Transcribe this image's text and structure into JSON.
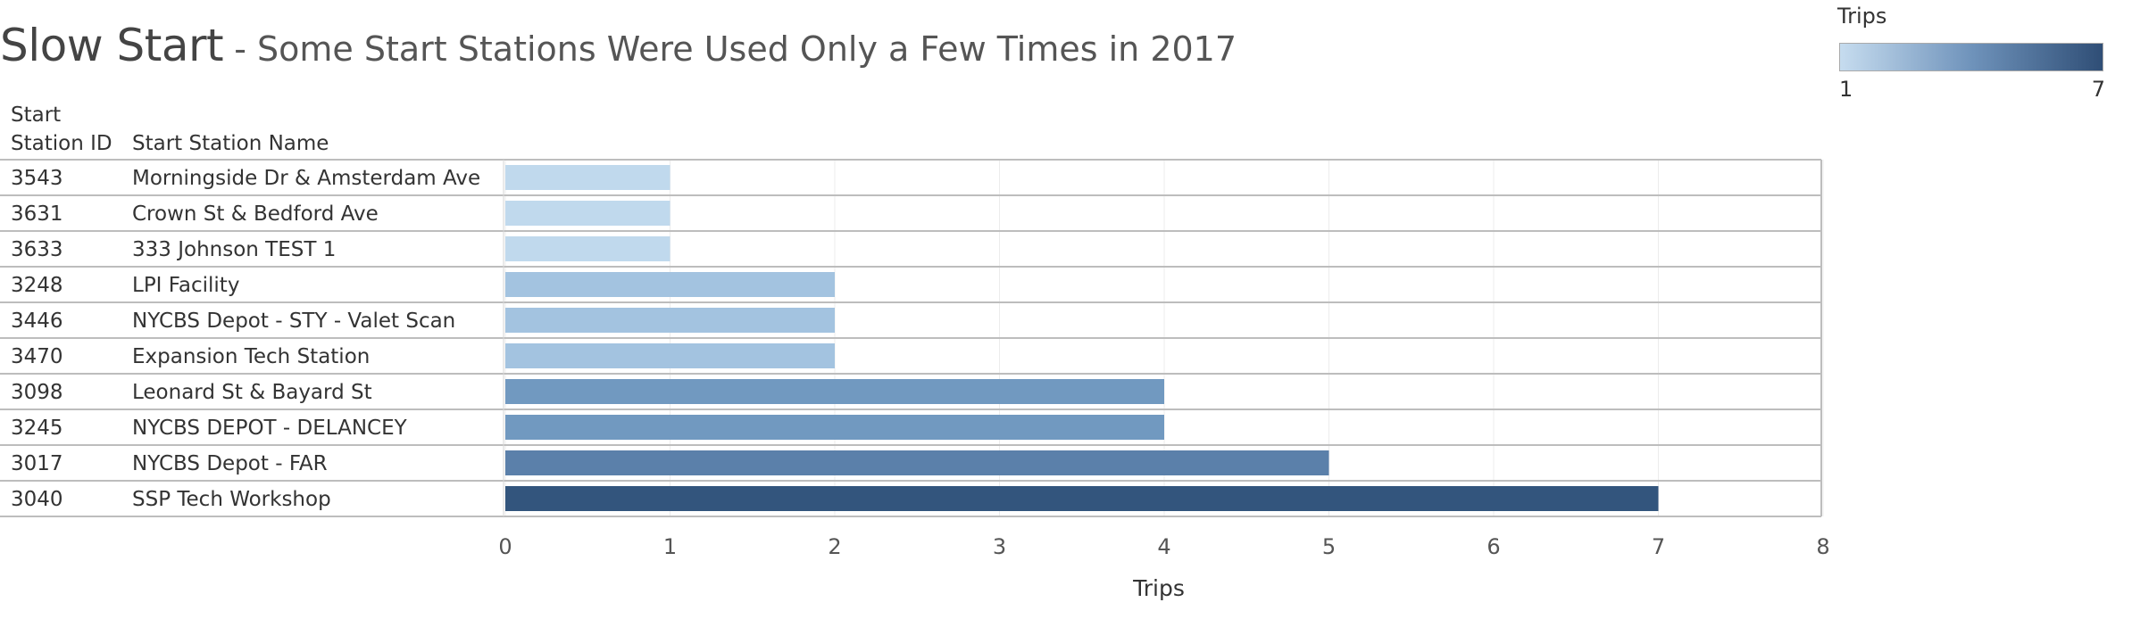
{
  "title": {
    "main": "Slow Start",
    "separator": " - ",
    "subtitle": "Some Start Stations Were Used Only a Few Times in 2017"
  },
  "legend": {
    "title": "Trips",
    "min_label": "1",
    "max_label": "7",
    "color_low": "#c6dcef",
    "color_high": "#2f4e76"
  },
  "chart_data": {
    "type": "bar",
    "orientation": "horizontal",
    "row_headers": [
      "Start Station ID",
      "Start Station Name"
    ],
    "series": [
      {
        "rows": [
          {
            "station_id": "3543",
            "station_name": "Morningside Dr & Amsterdam Ave",
            "value": 1,
            "color": "#c0d9ed"
          },
          {
            "station_id": "3631",
            "station_name": "Crown St & Bedford Ave",
            "value": 1,
            "color": "#c0d9ed"
          },
          {
            "station_id": "3633",
            "station_name": "333 Johnson TEST 1",
            "value": 1,
            "color": "#c0d9ed"
          },
          {
            "station_id": "3248",
            "station_name": "LPI Facility",
            "value": 2,
            "color": "#a3c3e0"
          },
          {
            "station_id": "3446",
            "station_name": "NYCBS Depot - STY - Valet Scan",
            "value": 2,
            "color": "#a3c3e0"
          },
          {
            "station_id": "3470",
            "station_name": "Expansion Tech Station",
            "value": 2,
            "color": "#a3c3e0"
          },
          {
            "station_id": "3098",
            "station_name": "Leonard St & Bayard St",
            "value": 4,
            "color": "#7199c0"
          },
          {
            "station_id": "3245",
            "station_name": "NYCBS DEPOT - DELANCEY",
            "value": 4,
            "color": "#7199c0"
          },
          {
            "station_id": "3017",
            "station_name": "NYCBS Depot - FAR",
            "value": 5,
            "color": "#5b80aa"
          },
          {
            "station_id": "3040",
            "station_name": "SSP Tech Workshop",
            "value": 7,
            "color": "#33557d"
          }
        ]
      }
    ],
    "xlabel": "Trips",
    "xlim": [
      0,
      8
    ],
    "x_ticks": [
      "0",
      "1",
      "2",
      "3",
      "4",
      "5",
      "6",
      "7",
      "8"
    ],
    "grid": true
  }
}
